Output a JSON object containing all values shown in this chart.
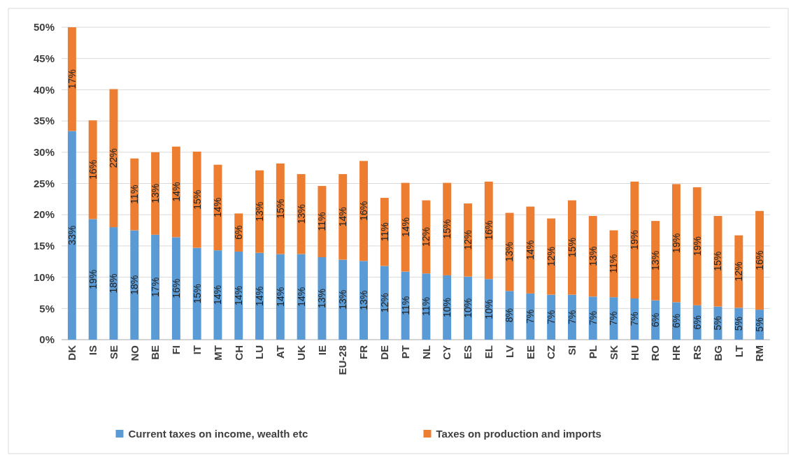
{
  "chart_data": {
    "type": "bar",
    "stacked": true,
    "categories": [
      "DK",
      "IS",
      "SE",
      "NO",
      "BE",
      "FI",
      "IT",
      "MT",
      "CH",
      "LU",
      "AT",
      "UK",
      "IE",
      "EU-28",
      "FR",
      "DE",
      "PT",
      "NL",
      "CY",
      "ES",
      "EL",
      "LV",
      "EE",
      "CZ",
      "SI",
      "PL",
      "SK",
      "HU",
      "RO",
      "HR",
      "RS",
      "BG",
      "LT",
      "RM"
    ],
    "series": [
      {
        "name": "Current taxes on income, wealth etc",
        "color": "#5b9bd5",
        "values": [
          33.4,
          19.3,
          18,
          17.5,
          16.8,
          16.4,
          14.7,
          14.3,
          14.1,
          13.9,
          13.7,
          13.7,
          13.2,
          12.8,
          12.6,
          11.8,
          10.9,
          10.6,
          10.3,
          10.1,
          9.7,
          7.8,
          7.4,
          7.2,
          7.2,
          6.9,
          6.8,
          6.6,
          6.3,
          6,
          5.5,
          5.3,
          5.1,
          4.8
        ],
        "value_labels": [
          "33%",
          "19%",
          "18%",
          "18%",
          "17%",
          "16%",
          "15%",
          "14%",
          "14%",
          "14%",
          "14%",
          "14%",
          "13%",
          "13%",
          "13%",
          "12%",
          "11%",
          "11%",
          "10%",
          "10%",
          "10%",
          "8%",
          "7%",
          "7%",
          "7%",
          "7%",
          "7%",
          "7%",
          "6%",
          "6%",
          "6%",
          "5%",
          "5%",
          "5%"
        ]
      },
      {
        "name": "Taxes on production and imports",
        "color": "#ed7d31",
        "values": [
          16.6,
          15.8,
          22.1,
          11.5,
          13.2,
          14.5,
          15.4,
          13.7,
          6.1,
          13.2,
          14.5,
          12.8,
          11.4,
          13.7,
          16,
          10.9,
          14.2,
          11.7,
          14.8,
          11.7,
          15.6,
          12.5,
          13.9,
          12.2,
          15.1,
          12.9,
          10.7,
          18.7,
          12.7,
          18.9,
          18.9,
          14.5,
          11.6,
          15.8
        ],
        "value_labels": [
          "17%",
          "16%",
          "22%",
          "11%",
          "13%",
          "14%",
          "15%",
          "14%",
          "6%",
          "13%",
          "15%",
          "13%",
          "11%",
          "14%",
          "16%",
          "11%",
          "14%",
          "12%",
          "15%",
          "12%",
          "16%",
          "13%",
          "14%",
          "12%",
          "15%",
          "13%",
          "11%",
          "19%",
          "13%",
          "19%",
          "19%",
          "15%",
          "12%",
          "16%"
        ]
      }
    ],
    "ylim": [
      0,
      50
    ],
    "yticks": [
      {
        "value": 0,
        "label": "0%"
      },
      {
        "value": 5,
        "label": "5%"
      },
      {
        "value": 10,
        "label": "10%"
      },
      {
        "value": 15,
        "label": "15%"
      },
      {
        "value": 20,
        "label": "20%"
      },
      {
        "value": 25,
        "label": "25%"
      },
      {
        "value": 30,
        "label": "30%"
      },
      {
        "value": 35,
        "label": "35%"
      },
      {
        "value": 40,
        "label": "40%"
      },
      {
        "value": 45,
        "label": "45%"
      },
      {
        "value": 50,
        "label": "50%"
      }
    ],
    "grid": "y",
    "legend": "bottom"
  }
}
